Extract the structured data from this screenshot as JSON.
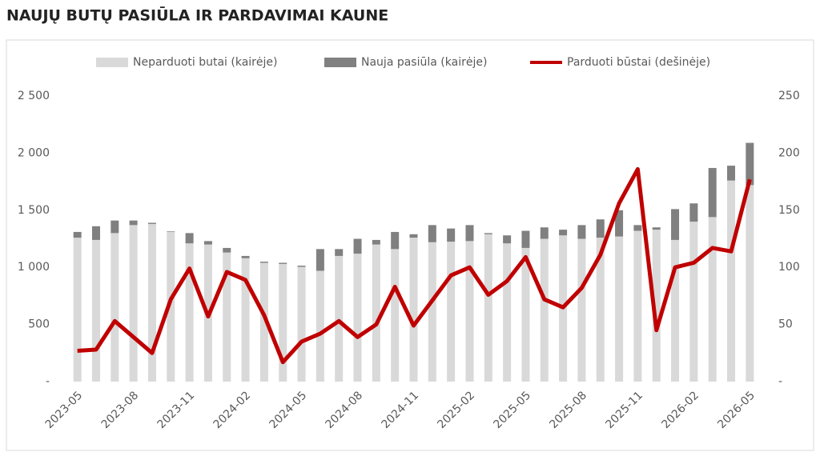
{
  "chart_data": {
    "type": "bar-line",
    "title": "NAUJŲ BUTŲ PASIŪLA IR PARDAVIMAI KAUNE",
    "categories": [
      "2023-05",
      null,
      null,
      "2023-08",
      null,
      null,
      "2023-11",
      null,
      null,
      "2024-02",
      null,
      null,
      "2024-05",
      null,
      null,
      "2024-08",
      null,
      null,
      "2024-11",
      null,
      null,
      "2025-02",
      null,
      null,
      "2025-05",
      null,
      null,
      "2025-08",
      null,
      null,
      "2025-11",
      null,
      null,
      "2026-02",
      null,
      null,
      "2026-05"
    ],
    "series": [
      {
        "name": "Neparduoti butai (kairėje)",
        "color": "#d9d9d9",
        "type": "bar",
        "values": [
          1260,
          1240,
          1300,
          1370,
          1380,
          1310,
          1210,
          1200,
          1130,
          1080,
          1040,
          1030,
          1005,
          970,
          1100,
          1120,
          1200,
          1160,
          1260,
          1220,
          1225,
          1230,
          1290,
          1210,
          1170,
          1250,
          1280,
          1250,
          1260,
          1270,
          1320,
          1330,
          1240,
          1400,
          1440,
          1760,
          1720
        ]
      },
      {
        "name": "Nauja pasiūla (kairėje)",
        "color": "#808080",
        "type": "bar",
        "values": [
          50,
          120,
          110,
          40,
          10,
          5,
          90,
          30,
          40,
          20,
          10,
          10,
          10,
          190,
          60,
          130,
          40,
          150,
          30,
          150,
          115,
          140,
          10,
          70,
          150,
          100,
          50,
          120,
          160,
          230,
          50,
          20,
          270,
          160,
          430,
          130,
          370
        ]
      },
      {
        "name": "Parduoti būstai (dešinėje)",
        "color": "#c00000",
        "type": "line",
        "axis": "y2",
        "values": [
          27,
          28,
          53,
          39,
          25,
          72,
          99,
          57,
          96,
          89,
          58,
          17,
          35,
          42,
          53,
          39,
          50,
          83,
          49,
          71,
          93,
          100,
          76,
          88,
          109,
          72,
          65,
          82,
          111,
          156,
          186,
          45,
          100,
          104,
          117,
          114,
          177
        ]
      }
    ],
    "ylim": [
      0,
      2500
    ],
    "yticks": [
      {
        "value": 0,
        "label": "-"
      },
      500,
      {
        "value": 1000,
        "label": "1 000"
      },
      {
        "value": 1500,
        "label": "1 500"
      },
      {
        "value": 2000,
        "label": "2 000"
      },
      {
        "value": 2500,
        "label": "2 500"
      }
    ],
    "y2lim": [
      0,
      250
    ],
    "y2ticks": [
      {
        "value": 0,
        "label": "-"
      },
      50,
      100,
      150,
      200,
      250
    ],
    "stacked": true,
    "legend": "top"
  }
}
